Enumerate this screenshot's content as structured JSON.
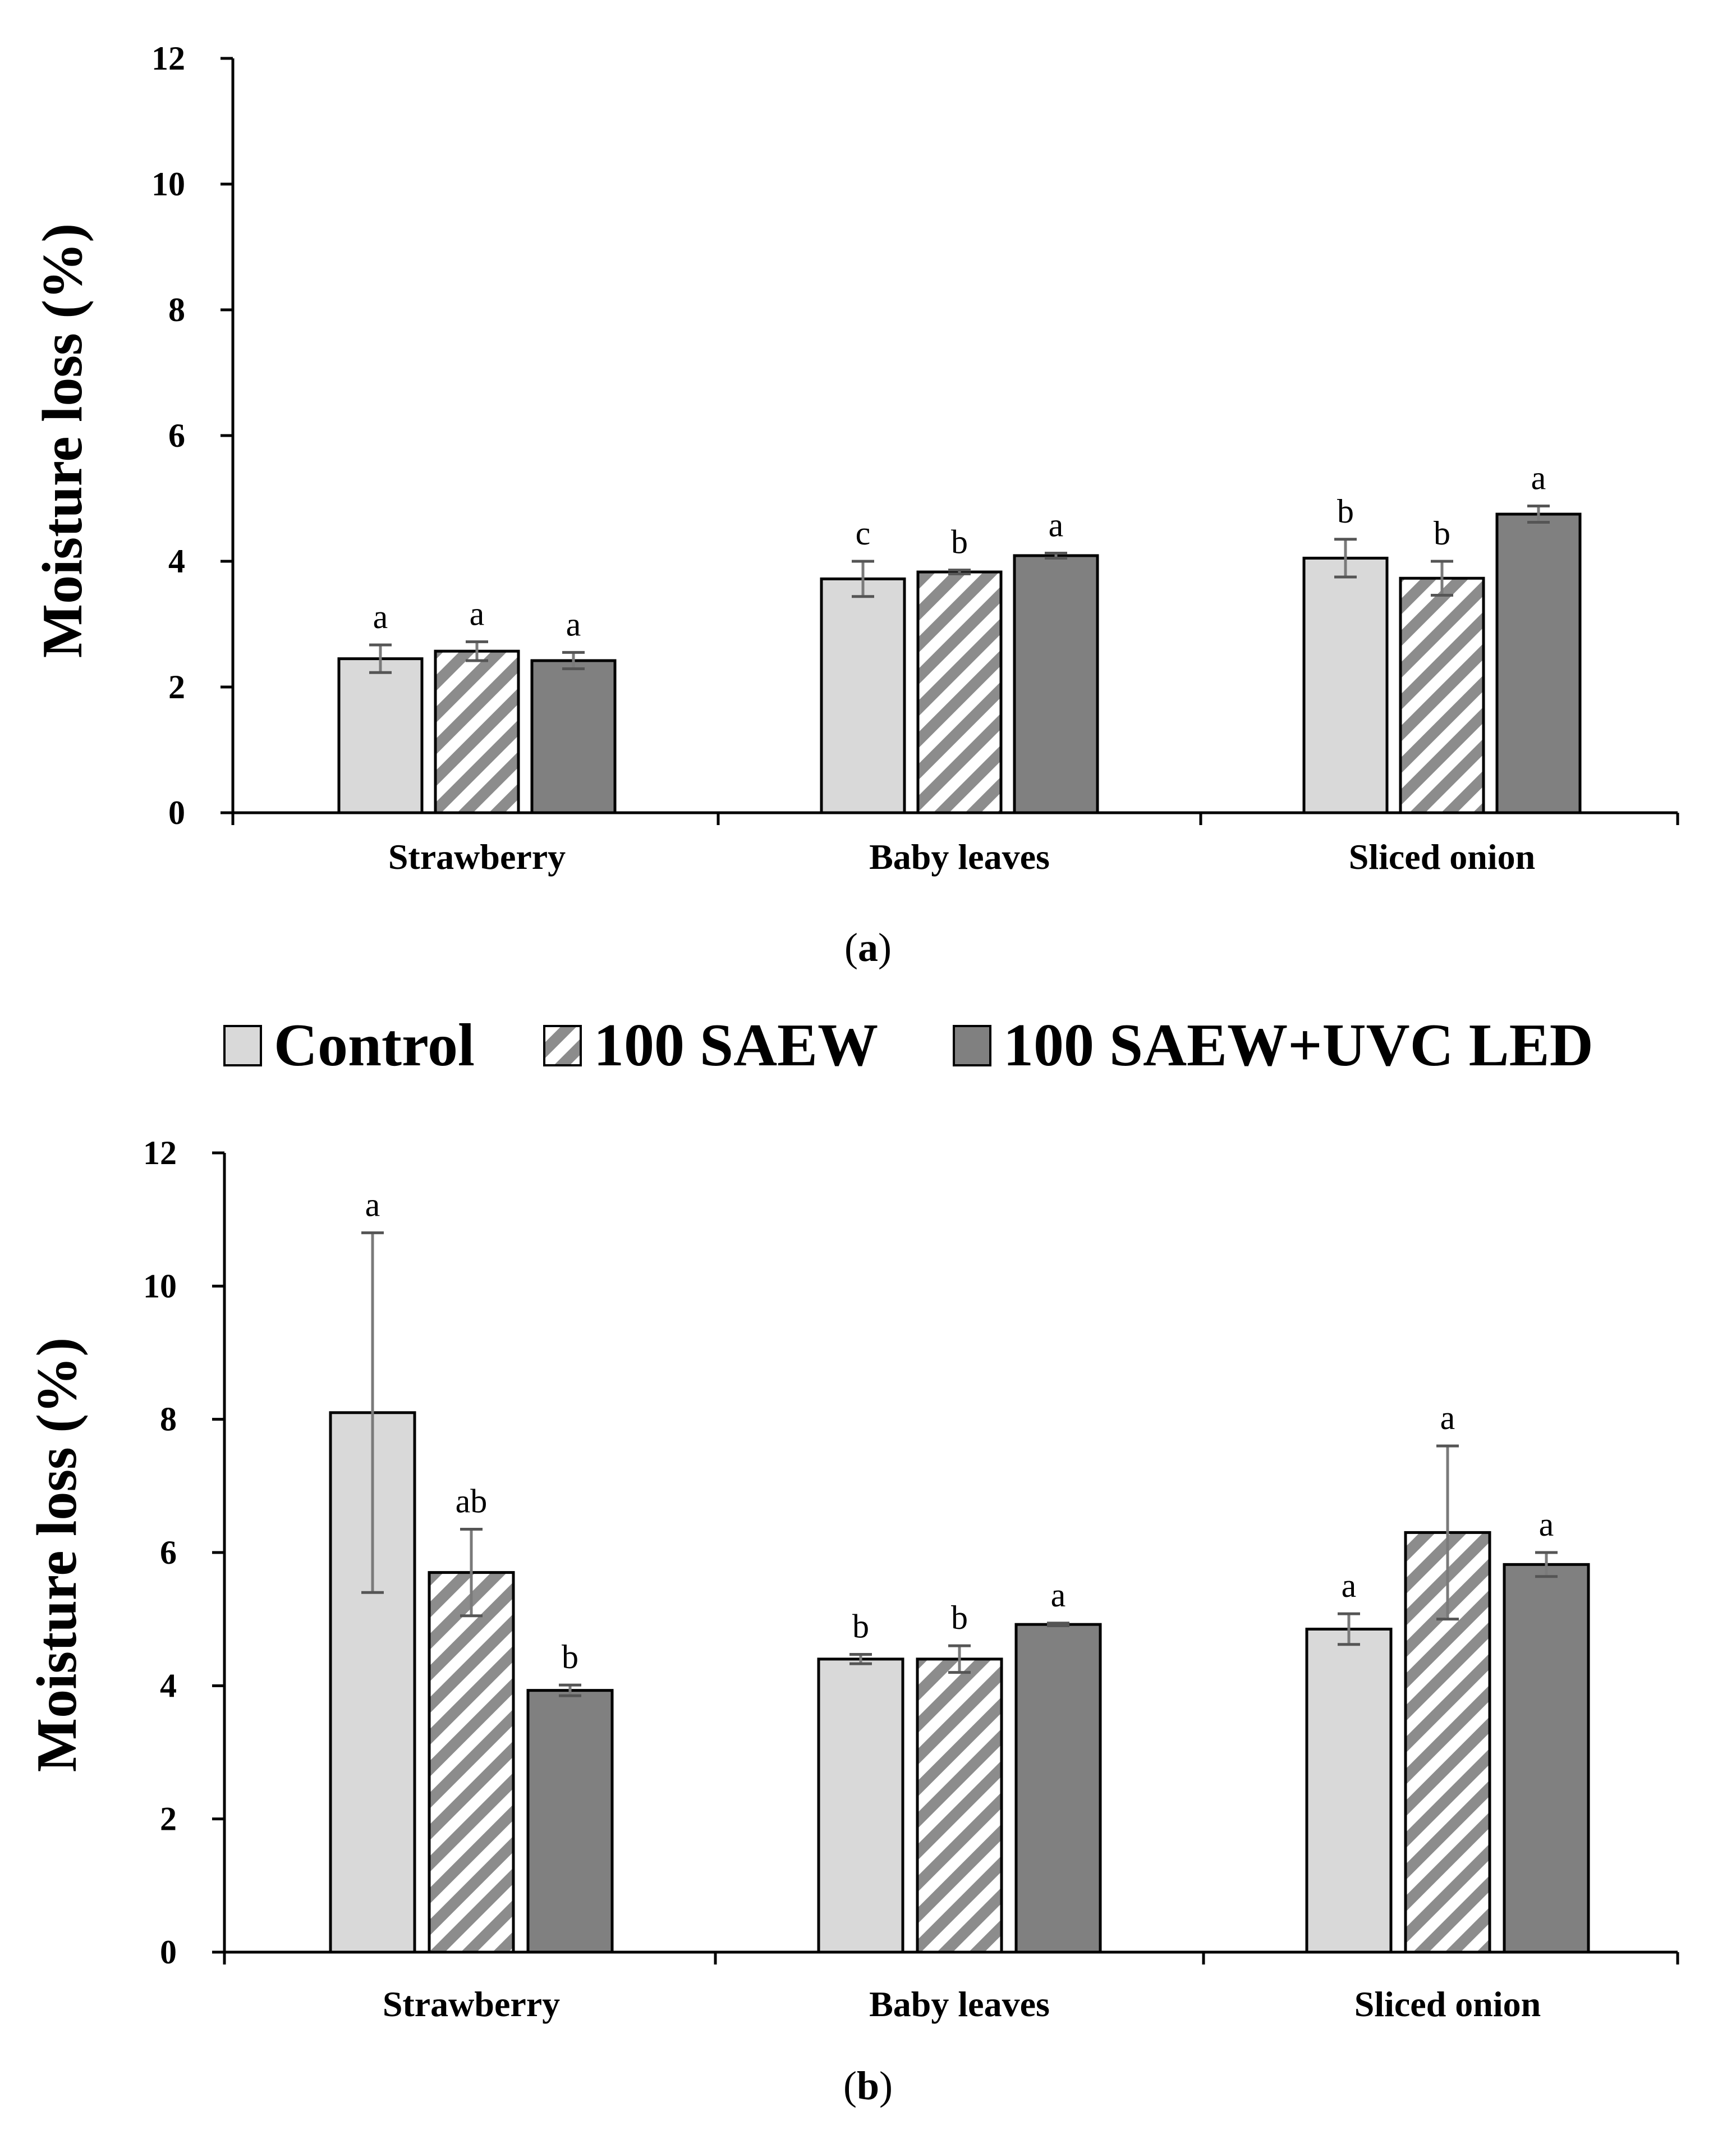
{
  "legend": {
    "items": [
      {
        "name": "Control",
        "fill": "#d9d9d9",
        "pattern": "solid"
      },
      {
        "name": "100 SAEW",
        "fill": "#ffffff",
        "stripe": "#8c8c8c",
        "pattern": "diagonal"
      },
      {
        "name": "100 SAEW+UVC LED",
        "fill": "#808080",
        "pattern": "solid"
      }
    ]
  },
  "captions": {
    "a": {
      "open": "(",
      "letter": "a",
      "close": ")"
    },
    "b": {
      "open": "(",
      "letter": "b",
      "close": ")"
    }
  },
  "chart_data": [
    {
      "id": "a",
      "type": "bar",
      "title": "",
      "xlabel": "",
      "ylabel": "Moisture loss (%)",
      "ylim": [
        0,
        12
      ],
      "yticks": [
        0,
        2,
        4,
        6,
        8,
        10,
        12
      ],
      "grid": false,
      "categories": [
        "Strawberry",
        "Baby leaves",
        "Sliced onion"
      ],
      "series": [
        {
          "name": "Control",
          "values": [
            2.45,
            3.72,
            4.05
          ],
          "errors": [
            0.22,
            0.28,
            0.3
          ],
          "labels": [
            "a",
            "c",
            "b"
          ]
        },
        {
          "name": "100 SAEW",
          "values": [
            2.57,
            3.83,
            3.73
          ],
          "errors": [
            0.15,
            0.03,
            0.27
          ],
          "labels": [
            "a",
            "b",
            "b"
          ]
        },
        {
          "name": "100 SAEW+UVC LED",
          "values": [
            2.42,
            4.09,
            4.75
          ],
          "errors": [
            0.13,
            0.04,
            0.13
          ],
          "labels": [
            "a",
            "a",
            "a"
          ]
        }
      ]
    },
    {
      "id": "b",
      "type": "bar",
      "title": "",
      "xlabel": "",
      "ylabel": "Moisture loss (%)",
      "ylim": [
        0,
        12
      ],
      "yticks": [
        0,
        2,
        4,
        6,
        8,
        10,
        12
      ],
      "grid": false,
      "categories": [
        "Strawberry",
        "Baby leaves",
        "Sliced onion"
      ],
      "series": [
        {
          "name": "Control",
          "values": [
            8.1,
            4.4,
            4.85
          ],
          "errors": [
            2.7,
            0.07,
            0.23
          ],
          "labels": [
            "a",
            "b",
            "a"
          ]
        },
        {
          "name": "100 SAEW",
          "values": [
            5.7,
            4.4,
            6.3
          ],
          "errors": [
            0.65,
            0.2,
            1.3
          ],
          "labels": [
            "ab",
            "b",
            "a"
          ]
        },
        {
          "name": "100 SAEW+UVC LED",
          "values": [
            3.93,
            4.92,
            5.82
          ],
          "errors": [
            0.08,
            0.02,
            0.18
          ],
          "labels": [
            "b",
            "a",
            "a"
          ]
        }
      ]
    }
  ]
}
